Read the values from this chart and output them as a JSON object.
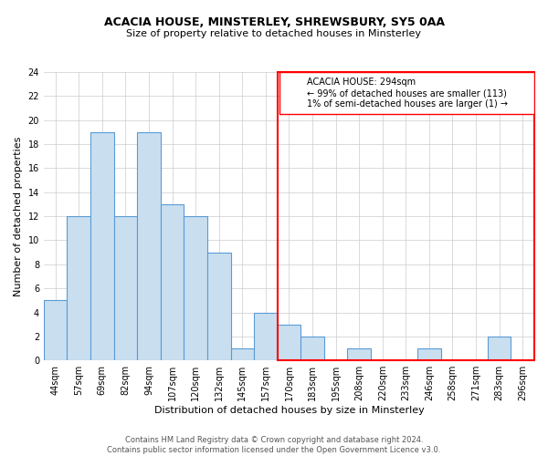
{
  "title": "ACACIA HOUSE, MINSTERLEY, SHREWSBURY, SY5 0AA",
  "subtitle": "Size of property relative to detached houses in Minsterley",
  "xlabel": "Distribution of detached houses by size in Minsterley",
  "ylabel": "Number of detached properties",
  "categories": [
    "44sqm",
    "57sqm",
    "69sqm",
    "82sqm",
    "94sqm",
    "107sqm",
    "120sqm",
    "132sqm",
    "145sqm",
    "157sqm",
    "170sqm",
    "183sqm",
    "195sqm",
    "208sqm",
    "220sqm",
    "233sqm",
    "246sqm",
    "258sqm",
    "271sqm",
    "283sqm",
    "296sqm"
  ],
  "values": [
    5,
    12,
    19,
    12,
    19,
    13,
    12,
    9,
    1,
    4,
    3,
    2,
    0,
    1,
    0,
    0,
    1,
    0,
    0,
    2,
    0
  ],
  "bar_color": "#c9dff0",
  "bar_edge_color": "#5b9bd5",
  "annotation_title": "ACACIA HOUSE: 294sqm",
  "annotation_line1": "← 99% of detached houses are smaller (113)",
  "annotation_line2": "1% of semi-detached houses are larger (1) →",
  "ylim": [
    0,
    24
  ],
  "yticks": [
    0,
    2,
    4,
    6,
    8,
    10,
    12,
    14,
    16,
    18,
    20,
    22,
    24
  ],
  "footer_line1": "Contains HM Land Registry data © Crown copyright and database right 2024.",
  "footer_line2": "Contains public sector information licensed under the Open Government Licence v3.0.",
  "background_color": "#ffffff",
  "grid_color": "#cccccc",
  "title_fontsize": 9,
  "subtitle_fontsize": 8,
  "ylabel_fontsize": 8,
  "xlabel_fontsize": 8,
  "tick_fontsize": 7,
  "annotation_fontsize": 7,
  "footer_fontsize": 6
}
